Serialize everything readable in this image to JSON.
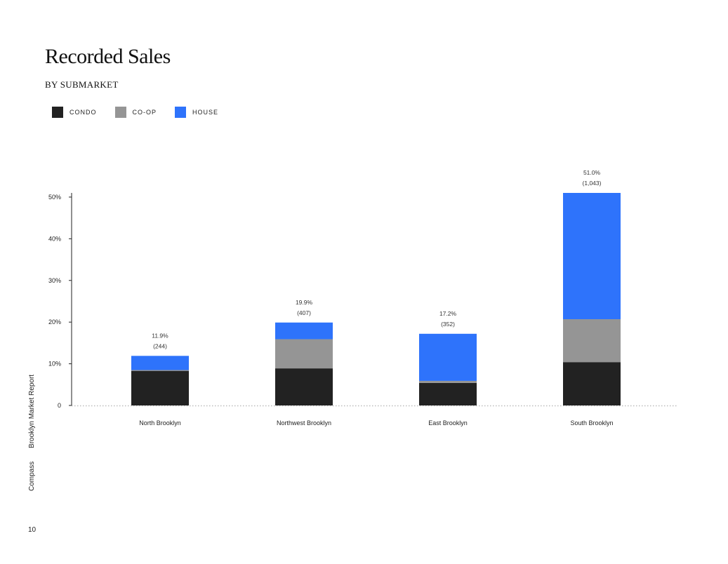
{
  "title": "Recorded Sales",
  "subtitle": "BY SUBMARKET",
  "footer": {
    "brand": "Compass",
    "report": "Brooklyn Market Report",
    "page": "10"
  },
  "chart_data": {
    "type": "bar",
    "stacked": true,
    "title": "Recorded Sales",
    "subtitle": "BY SUBMARKET",
    "categories": [
      "North Brooklyn",
      "Northwest Brooklyn",
      "East Brooklyn",
      "South Brooklyn"
    ],
    "series": [
      {
        "name": "CONDO",
        "color": "#222222",
        "values": [
          8.3,
          8.9,
          5.4,
          10.4
        ]
      },
      {
        "name": "CO-OP",
        "color": "#959595",
        "values": [
          0.2,
          7.0,
          0.5,
          10.3
        ]
      },
      {
        "name": "HOUSE",
        "color": "#2e73fb",
        "values": [
          3.4,
          4.0,
          11.3,
          30.3
        ]
      }
    ],
    "totals": [
      "11.9%",
      "19.9%",
      "17.2%",
      "51.0%"
    ],
    "counts": [
      "(244)",
      "(407)",
      "(352)",
      "(1,043)"
    ],
    "yticks": [
      {
        "value": 0,
        "label": "0"
      },
      {
        "value": 10,
        "label": "10%"
      },
      {
        "value": 20,
        "label": "20%"
      },
      {
        "value": 30,
        "label": "30%"
      },
      {
        "value": 40,
        "label": "40%"
      },
      {
        "value": 50,
        "label": "50%"
      }
    ],
    "ylim": [
      0,
      51
    ],
    "legend_position": "top-left"
  }
}
